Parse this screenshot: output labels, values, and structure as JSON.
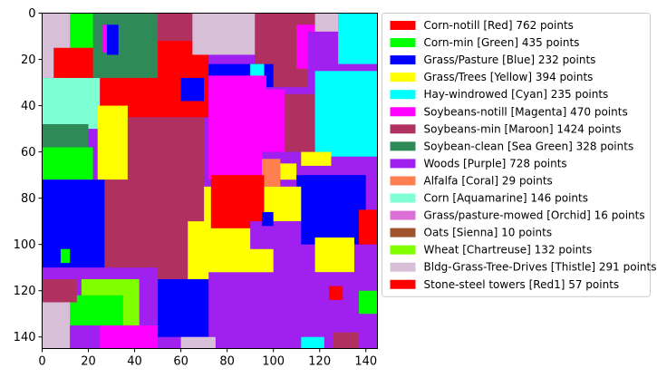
{
  "chart_data": {
    "type": "heatmap",
    "title": "",
    "xlabel": "",
    "ylabel": "",
    "xlim": [
      0,
      145
    ],
    "ylim": [
      145,
      0
    ],
    "x_ticks": [
      "0",
      "20",
      "40",
      "60",
      "80",
      "100",
      "120",
      "140"
    ],
    "y_ticks": [
      "0",
      "20",
      "40",
      "60",
      "80",
      "100",
      "120",
      "140"
    ],
    "grid": false,
    "legend_position": "right",
    "classes": [
      {
        "label": "Corn-notill [Red] 762 points",
        "color": "#ff0000"
      },
      {
        "label": "Corn-min [Green] 435 points",
        "color": "#00ff00"
      },
      {
        "label": "Grass/Pasture [Blue] 232 points",
        "color": "#0000ff"
      },
      {
        "label": "Grass/Trees [Yellow] 394 points",
        "color": "#ffff00"
      },
      {
        "label": "Hay-windrowed [Cyan] 235 points",
        "color": "#00ffff"
      },
      {
        "label": "Soybeans-notill [Magenta] 470 points",
        "color": "#ff00ff"
      },
      {
        "label": "Soybeans-min [Maroon] 1424 points",
        "color": "#b03060"
      },
      {
        "label": "Soybean-clean [Sea Green] 328 points",
        "color": "#2e8b57"
      },
      {
        "label": "Woods [Purple] 728 points",
        "color": "#a020f0"
      },
      {
        "label": "Alfalfa [Coral] 29 points",
        "color": "#ff7f50"
      },
      {
        "label": "Corn [Aquamarine] 146 points",
        "color": "#7fffd4"
      },
      {
        "label": "Grass/pasture-mowed [Orchid] 16 points",
        "color": "#da70d6"
      },
      {
        "label": "Oats [Sienna] 10 points",
        "color": "#a0522d"
      },
      {
        "label": "Wheat [Chartreuse] 132 points",
        "color": "#7fff00"
      },
      {
        "label": "Bldg-Grass-Tree-Drives [Thistle] 291 points",
        "color": "#d8bfd8"
      },
      {
        "label": "Stone-steel towers [Red1] 57 points",
        "color": "#ff0000"
      }
    ],
    "regions": [
      {
        "c": 8,
        "x0": 0,
        "y0": 0,
        "x1": 145,
        "y1": 145
      },
      {
        "c": 10,
        "x0": 0,
        "y0": 28,
        "x1": 25,
        "y1": 50
      },
      {
        "c": 7,
        "x0": 0,
        "y0": 48,
        "x1": 20,
        "y1": 58
      },
      {
        "c": 1,
        "x0": 0,
        "y0": 58,
        "x1": 22,
        "y1": 72
      },
      {
        "c": 1,
        "x0": 10,
        "y0": 0,
        "x1": 28,
        "y1": 20
      },
      {
        "c": 14,
        "x0": 0,
        "y0": 0,
        "x1": 12,
        "y1": 28
      },
      {
        "c": 0,
        "x0": 5,
        "y0": 15,
        "x1": 25,
        "y1": 28
      },
      {
        "c": 7,
        "x0": 22,
        "y0": 0,
        "x1": 50,
        "y1": 28
      },
      {
        "c": 5,
        "x0": 26,
        "y0": 5,
        "x1": 30,
        "y1": 17
      },
      {
        "c": 2,
        "x0": 28,
        "y0": 5,
        "x1": 33,
        "y1": 18
      },
      {
        "c": 0,
        "x0": 25,
        "y0": 28,
        "x1": 72,
        "y1": 45
      },
      {
        "c": 0,
        "x0": 50,
        "y0": 5,
        "x1": 72,
        "y1": 30
      },
      {
        "c": 6,
        "x0": 50,
        "y0": 0,
        "x1": 75,
        "y1": 12
      },
      {
        "c": 2,
        "x0": 60,
        "y0": 28,
        "x1": 70,
        "y1": 38
      },
      {
        "c": 14,
        "x0": 65,
        "y0": 0,
        "x1": 100,
        "y1": 18
      },
      {
        "c": 6,
        "x0": 92,
        "y0": 0,
        "x1": 122,
        "y1": 32
      },
      {
        "c": 5,
        "x0": 110,
        "y0": 5,
        "x1": 118,
        "y1": 24
      },
      {
        "c": 14,
        "x0": 118,
        "y0": 0,
        "x1": 128,
        "y1": 8
      },
      {
        "c": 8,
        "x0": 115,
        "y0": 8,
        "x1": 132,
        "y1": 34
      },
      {
        "c": 4,
        "x0": 128,
        "y0": 0,
        "x1": 145,
        "y1": 22
      },
      {
        "c": 2,
        "x0": 72,
        "y0": 22,
        "x1": 100,
        "y1": 32
      },
      {
        "c": 4,
        "x0": 90,
        "y0": 22,
        "x1": 96,
        "y1": 30
      },
      {
        "c": 5,
        "x0": 72,
        "y0": 27,
        "x1": 97,
        "y1": 72
      },
      {
        "c": 5,
        "x0": 97,
        "y0": 33,
        "x1": 105,
        "y1": 60
      },
      {
        "c": 6,
        "x0": 105,
        "y0": 35,
        "x1": 118,
        "y1": 60
      },
      {
        "c": 4,
        "x0": 118,
        "y0": 25,
        "x1": 145,
        "y1": 62
      },
      {
        "c": 8,
        "x0": 95,
        "y0": 60,
        "x1": 120,
        "y1": 70
      },
      {
        "c": 9,
        "x0": 95,
        "y0": 63,
        "x1": 103,
        "y1": 75
      },
      {
        "c": 3,
        "x0": 103,
        "y0": 65,
        "x1": 110,
        "y1": 72
      },
      {
        "c": 2,
        "x0": 110,
        "y0": 70,
        "x1": 140,
        "y1": 100
      },
      {
        "c": 3,
        "x0": 112,
        "y0": 60,
        "x1": 125,
        "y1": 66
      },
      {
        "c": 3,
        "x0": 24,
        "y0": 40,
        "x1": 37,
        "y1": 72
      },
      {
        "c": 0,
        "x0": 39,
        "y0": 64,
        "x1": 48,
        "y1": 70
      },
      {
        "c": 6,
        "x0": 37,
        "y0": 45,
        "x1": 70,
        "y1": 115
      },
      {
        "c": 6,
        "x0": 27,
        "y0": 72,
        "x1": 70,
        "y1": 112
      },
      {
        "c": 2,
        "x0": 0,
        "y0": 72,
        "x1": 27,
        "y1": 110
      },
      {
        "c": 3,
        "x0": 63,
        "y0": 90,
        "x1": 100,
        "y1": 118
      },
      {
        "c": 3,
        "x0": 70,
        "y0": 75,
        "x1": 75,
        "y1": 92
      },
      {
        "c": 0,
        "x0": 73,
        "y0": 70,
        "x1": 96,
        "y1": 93
      },
      {
        "c": 3,
        "x0": 96,
        "y0": 75,
        "x1": 112,
        "y1": 90
      },
      {
        "c": 8,
        "x0": 90,
        "y0": 90,
        "x1": 112,
        "y1": 102
      },
      {
        "c": 2,
        "x0": 95,
        "y0": 86,
        "x1": 100,
        "y1": 92
      },
      {
        "c": 3,
        "x0": 118,
        "y0": 97,
        "x1": 135,
        "y1": 112
      },
      {
        "c": 0,
        "x0": 137,
        "y0": 85,
        "x1": 145,
        "y1": 100
      },
      {
        "c": 2,
        "x0": 50,
        "y0": 115,
        "x1": 76,
        "y1": 140
      },
      {
        "c": 8,
        "x0": 72,
        "y0": 112,
        "x1": 145,
        "y1": 145
      },
      {
        "c": 8,
        "x0": 0,
        "y0": 110,
        "x1": 50,
        "y1": 145
      },
      {
        "c": 13,
        "x0": 17,
        "y0": 115,
        "x1": 42,
        "y1": 135
      },
      {
        "c": 1,
        "x0": 10,
        "y0": 122,
        "x1": 35,
        "y1": 135
      },
      {
        "c": 5,
        "x0": 25,
        "y0": 135,
        "x1": 50,
        "y1": 145
      },
      {
        "c": 6,
        "x0": 0,
        "y0": 115,
        "x1": 15,
        "y1": 125
      },
      {
        "c": 14,
        "x0": 0,
        "y0": 125,
        "x1": 12,
        "y1": 145
      },
      {
        "c": 1,
        "x0": 8,
        "y0": 102,
        "x1": 12,
        "y1": 108
      },
      {
        "c": 1,
        "x0": 137,
        "y0": 120,
        "x1": 145,
        "y1": 130
      },
      {
        "c": 6,
        "x0": 126,
        "y0": 138,
        "x1": 137,
        "y1": 145
      },
      {
        "c": 4,
        "x0": 112,
        "y0": 140,
        "x1": 122,
        "y1": 145
      },
      {
        "c": 14,
        "x0": 60,
        "y0": 140,
        "x1": 75,
        "y1": 145
      },
      {
        "c": 0,
        "x0": 124,
        "y0": 118,
        "x1": 130,
        "y1": 124
      }
    ]
  }
}
